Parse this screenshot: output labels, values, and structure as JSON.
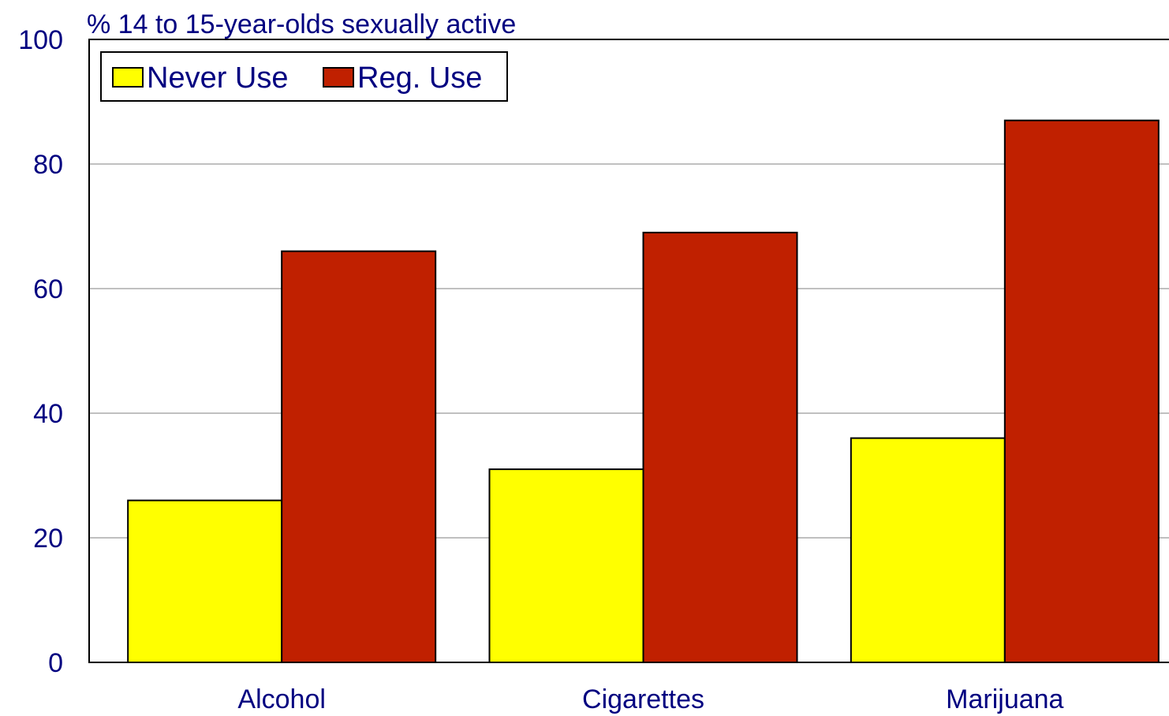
{
  "chart_data": {
    "type": "bar",
    "title": "% 14 to 15-year-olds sexually active",
    "categories": [
      "Alcohol",
      "Cigarettes",
      "Marijuana"
    ],
    "series": [
      {
        "name": "Never Use",
        "values": [
          26,
          31,
          36
        ],
        "color": "#ffff00"
      },
      {
        "name": "Reg. Use",
        "values": [
          66,
          69,
          87
        ],
        "color": "#c02000"
      }
    ],
    "ylim": [
      0,
      100
    ],
    "yticks": [
      "0",
      "20",
      "40",
      "60",
      "80",
      "100"
    ],
    "grid": true,
    "legend_position": "top-left",
    "text_color": "#000080"
  }
}
